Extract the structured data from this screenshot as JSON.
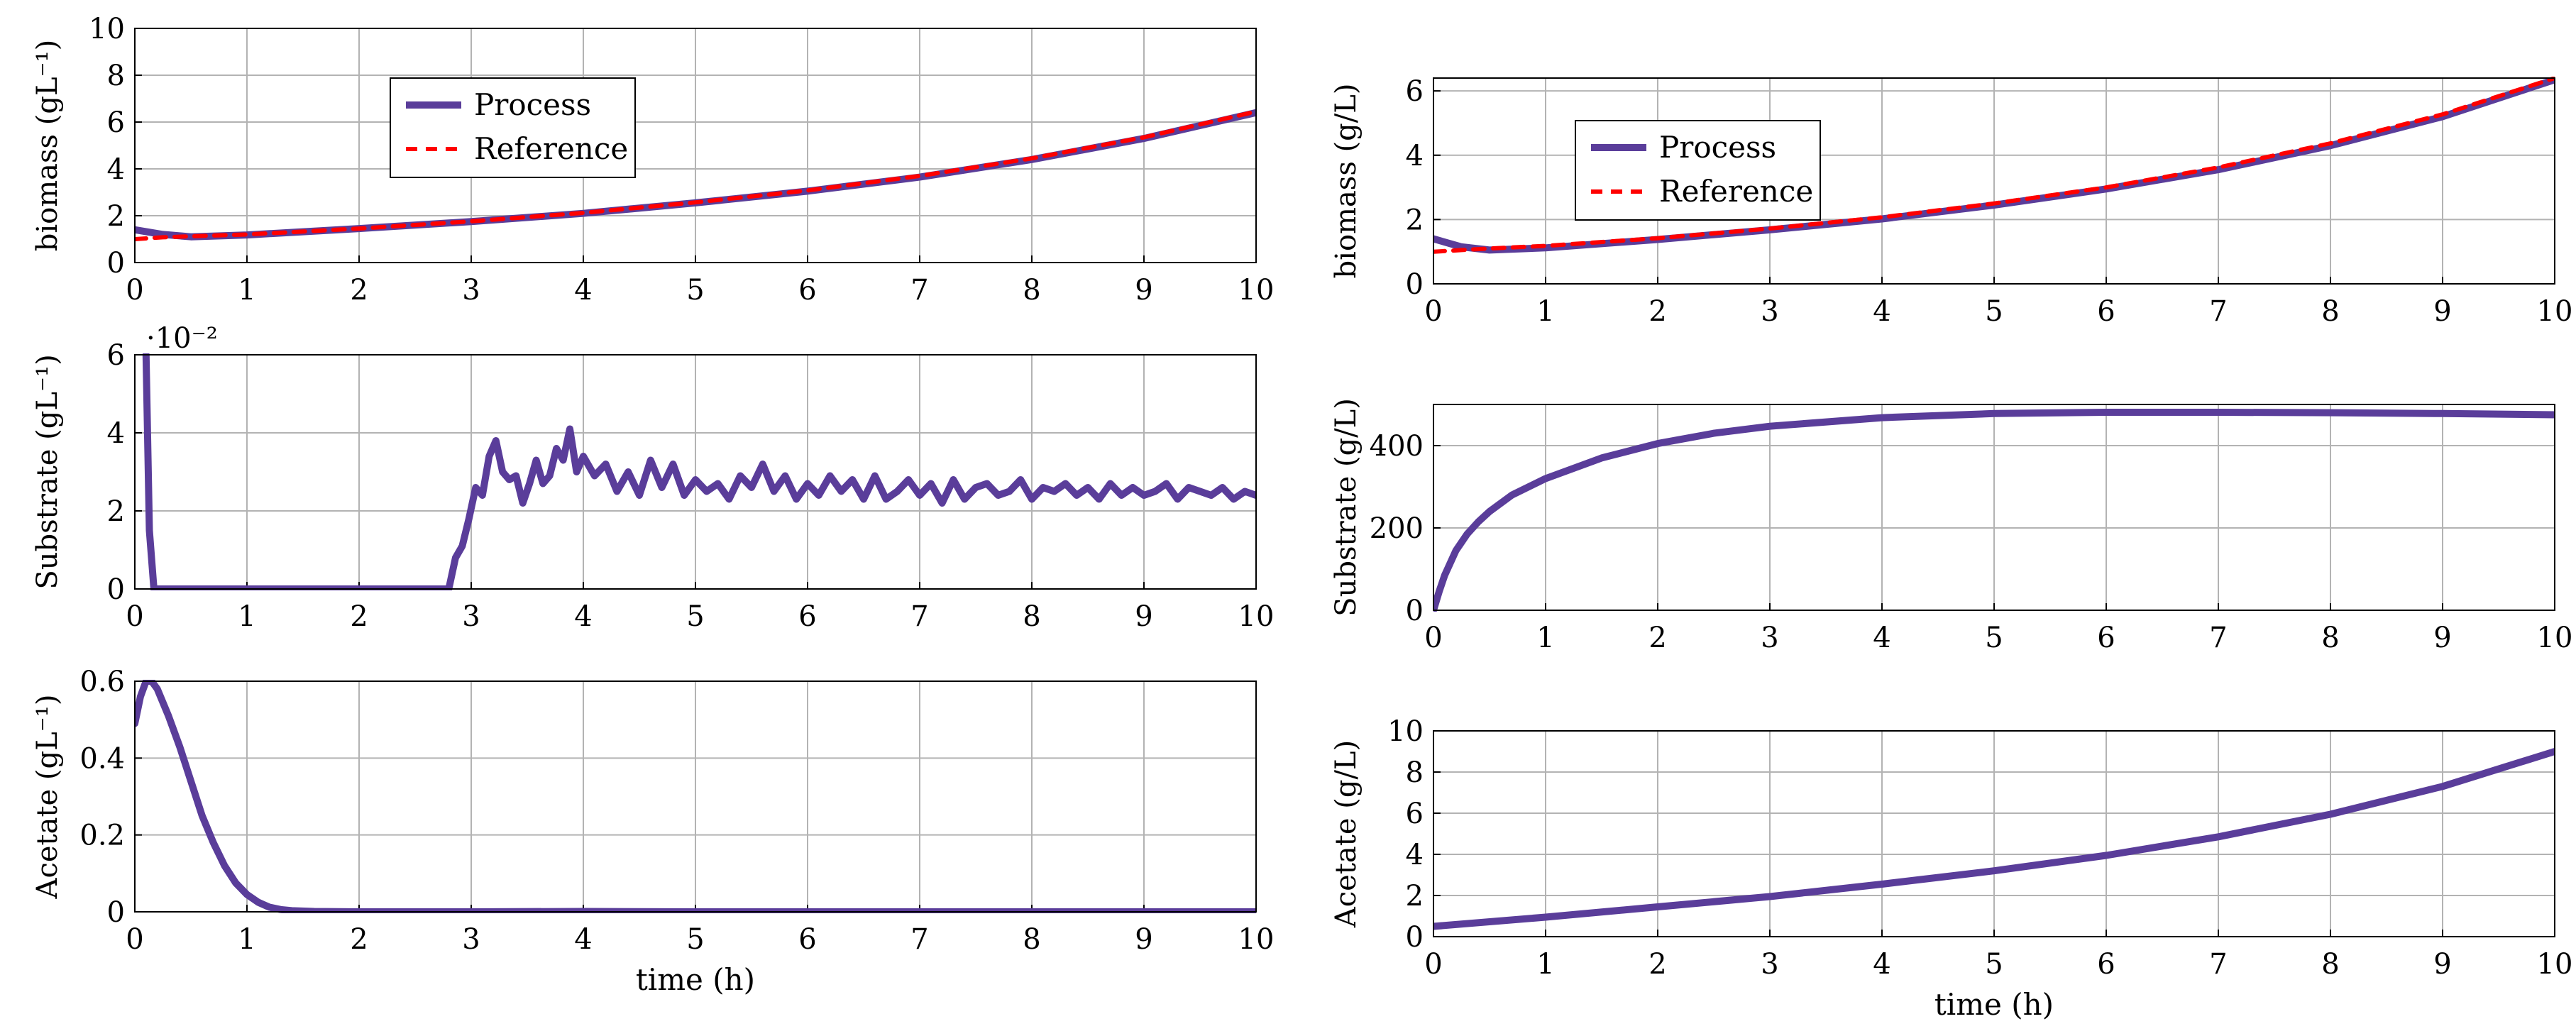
{
  "figure": {
    "xlabel": "time (h)",
    "legend_process": "Process",
    "legend_reference": "Reference",
    "colors": {
      "process": "#5a3d9a",
      "reference": "#ff0000",
      "grid": "#b3b3b3",
      "axis": "#000000"
    }
  },
  "chart_data": [
    {
      "id": "left-biomass",
      "type": "line",
      "ylabel": "biomass (gL⁻¹)",
      "xlabel": "",
      "xlim": [
        0,
        10
      ],
      "ylim": [
        0,
        10
      ],
      "xticks": [
        0,
        1,
        2,
        3,
        4,
        5,
        6,
        7,
        8,
        9,
        10
      ],
      "yticks": [
        0,
        2,
        4,
        6,
        8,
        10
      ],
      "multiplier": "",
      "legend": "upper-left",
      "series": [
        {
          "name": "Process",
          "style": "solid",
          "x": [
            0,
            0.25,
            0.5,
            1,
            2,
            3,
            4,
            5,
            6,
            7,
            8,
            9,
            10
          ],
          "y": [
            1.4,
            1.2,
            1.1,
            1.18,
            1.45,
            1.75,
            2.1,
            2.55,
            3.05,
            3.65,
            4.4,
            5.3,
            6.4
          ]
        },
        {
          "name": "Reference",
          "style": "dashed",
          "x": [
            0,
            0.25,
            0.5,
            1,
            2,
            3,
            4,
            5,
            6,
            7,
            8,
            9,
            10
          ],
          "y": [
            1.0,
            1.08,
            1.12,
            1.2,
            1.45,
            1.76,
            2.12,
            2.57,
            3.08,
            3.7,
            4.45,
            5.35,
            6.45
          ]
        }
      ]
    },
    {
      "id": "left-substrate",
      "type": "line",
      "ylabel": "Substrate (gL⁻¹)",
      "xlabel": "",
      "xlim": [
        0,
        10
      ],
      "ylim": [
        0,
        6
      ],
      "xticks": [
        0,
        1,
        2,
        3,
        4,
        5,
        6,
        7,
        8,
        9,
        10
      ],
      "yticks": [
        0,
        2,
        4,
        6
      ],
      "multiplier": "·10⁻²",
      "legend": "none",
      "series": [
        {
          "name": "Process",
          "style": "solid",
          "x": [
            0.1,
            0.13,
            0.17,
            2.8,
            2.86,
            2.92,
            2.98,
            3.04,
            3.1,
            3.16,
            3.22,
            3.28,
            3.34,
            3.4,
            3.46,
            3.52,
            3.58,
            3.64,
            3.7,
            3.76,
            3.82,
            3.88,
            3.94,
            4.0,
            4.1,
            4.2,
            4.3,
            4.4,
            4.5,
            4.6,
            4.7,
            4.8,
            4.9,
            5.0,
            5.1,
            5.2,
            5.3,
            5.4,
            5.5,
            5.6,
            5.7,
            5.8,
            5.9,
            6.0,
            6.1,
            6.2,
            6.3,
            6.4,
            6.5,
            6.6,
            6.7,
            6.8,
            6.9,
            7.0,
            7.1,
            7.2,
            7.3,
            7.4,
            7.5,
            7.6,
            7.7,
            7.8,
            7.9,
            8.0,
            8.1,
            8.2,
            8.3,
            8.4,
            8.5,
            8.6,
            8.7,
            8.8,
            8.9,
            9.0,
            9.1,
            9.2,
            9.3,
            9.4,
            9.5,
            9.6,
            9.7,
            9.8,
            9.9,
            10.0
          ],
          "y": [
            6.0,
            1.5,
            0,
            0,
            0.8,
            1.1,
            1.8,
            2.6,
            2.4,
            3.4,
            3.8,
            3.0,
            2.8,
            2.9,
            2.2,
            2.7,
            3.3,
            2.7,
            2.9,
            3.6,
            3.3,
            4.1,
            3.0,
            3.4,
            2.9,
            3.2,
            2.5,
            3.0,
            2.4,
            3.3,
            2.6,
            3.2,
            2.4,
            2.8,
            2.5,
            2.7,
            2.3,
            2.9,
            2.6,
            3.2,
            2.5,
            2.9,
            2.3,
            2.7,
            2.4,
            2.9,
            2.5,
            2.8,
            2.3,
            2.9,
            2.3,
            2.5,
            2.8,
            2.4,
            2.7,
            2.2,
            2.8,
            2.3,
            2.6,
            2.7,
            2.4,
            2.5,
            2.8,
            2.3,
            2.6,
            2.5,
            2.7,
            2.4,
            2.6,
            2.3,
            2.7,
            2.4,
            2.6,
            2.4,
            2.5,
            2.7,
            2.3,
            2.6,
            2.5,
            2.4,
            2.6,
            2.3,
            2.5,
            2.4
          ]
        }
      ]
    },
    {
      "id": "left-acetate",
      "type": "line",
      "ylabel": "Acetate (gL⁻¹)",
      "xlabel": "time (h)",
      "xlim": [
        0,
        10
      ],
      "ylim": [
        0,
        0.6
      ],
      "xticks": [
        0,
        1,
        2,
        3,
        4,
        5,
        6,
        7,
        8,
        9,
        10
      ],
      "yticks": [
        0,
        0.2,
        0.4,
        0.6
      ],
      "multiplier": "",
      "legend": "none",
      "series": [
        {
          "name": "Process",
          "style": "solid",
          "x": [
            0,
            0.05,
            0.1,
            0.15,
            0.2,
            0.3,
            0.4,
            0.5,
            0.6,
            0.7,
            0.8,
            0.9,
            1.0,
            1.1,
            1.2,
            1.3,
            1.4,
            1.6,
            2,
            3,
            4,
            5,
            6,
            7,
            8,
            9,
            10
          ],
          "y": [
            0.49,
            0.56,
            0.6,
            0.6,
            0.58,
            0.51,
            0.43,
            0.34,
            0.25,
            0.18,
            0.12,
            0.075,
            0.045,
            0.025,
            0.012,
            0.006,
            0.003,
            0.001,
            0,
            0,
            0.001,
            0,
            0,
            0,
            0,
            0,
            0
          ]
        }
      ]
    },
    {
      "id": "right-biomass",
      "type": "line",
      "ylabel": "biomass (g/L)",
      "xlabel": "",
      "xlim": [
        0,
        10
      ],
      "ylim": [
        0,
        6.4
      ],
      "xticks": [
        0,
        1,
        2,
        3,
        4,
        5,
        6,
        7,
        8,
        9,
        10
      ],
      "yticks": [
        0,
        2,
        4,
        6
      ],
      "multiplier": "",
      "legend": "upper-left",
      "series": [
        {
          "name": "Process",
          "style": "solid",
          "x": [
            0,
            0.25,
            0.5,
            1,
            2,
            3,
            4,
            5,
            6,
            7,
            8,
            9,
            10
          ],
          "y": [
            1.4,
            1.15,
            1.05,
            1.12,
            1.38,
            1.68,
            2.02,
            2.45,
            2.95,
            3.55,
            4.3,
            5.2,
            6.35
          ]
        },
        {
          "name": "Reference",
          "style": "dashed",
          "x": [
            0,
            0.25,
            0.5,
            1,
            2,
            3,
            4,
            5,
            6,
            7,
            8,
            9,
            10
          ],
          "y": [
            1.0,
            1.05,
            1.1,
            1.18,
            1.42,
            1.72,
            2.07,
            2.5,
            3.0,
            3.62,
            4.37,
            5.27,
            6.4
          ]
        }
      ]
    },
    {
      "id": "right-substrate",
      "type": "line",
      "ylabel": "Substrate (g/L)",
      "xlabel": "",
      "xlim": [
        0,
        10
      ],
      "ylim": [
        0,
        500
      ],
      "xticks": [
        0,
        1,
        2,
        3,
        4,
        5,
        6,
        7,
        8,
        9,
        10
      ],
      "yticks": [
        0,
        200,
        400
      ],
      "multiplier": "",
      "legend": "none",
      "series": [
        {
          "name": "Process",
          "style": "solid",
          "x": [
            0,
            0.05,
            0.1,
            0.2,
            0.3,
            0.4,
            0.5,
            0.7,
            1,
            1.5,
            2,
            2.5,
            3,
            4,
            5,
            6,
            7,
            8,
            9,
            10
          ],
          "y": [
            0,
            45,
            85,
            145,
            185,
            215,
            240,
            280,
            320,
            370,
            405,
            430,
            447,
            468,
            478,
            481,
            481,
            480,
            478,
            475
          ]
        }
      ]
    },
    {
      "id": "right-acetate",
      "type": "line",
      "ylabel": "Acetate (g/L)",
      "xlabel": "time (h)",
      "xlim": [
        0,
        10
      ],
      "ylim": [
        0,
        10
      ],
      "xticks": [
        0,
        1,
        2,
        3,
        4,
        5,
        6,
        7,
        8,
        9,
        10
      ],
      "yticks": [
        0,
        2,
        4,
        6,
        8,
        10
      ],
      "multiplier": "",
      "legend": "none",
      "series": [
        {
          "name": "Process",
          "style": "solid",
          "x": [
            0,
            1,
            2,
            3,
            4,
            5,
            6,
            7,
            8,
            9,
            10
          ],
          "y": [
            0.5,
            0.95,
            1.45,
            1.95,
            2.55,
            3.2,
            3.95,
            4.85,
            5.95,
            7.3,
            9.0
          ]
        }
      ]
    }
  ]
}
